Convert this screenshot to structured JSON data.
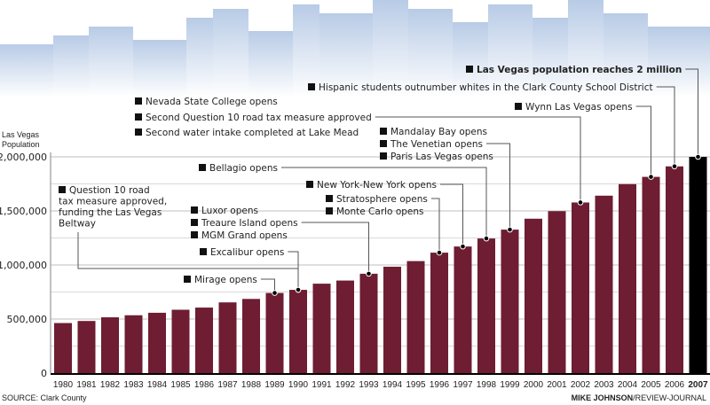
{
  "chart_data": {
    "type": "bar",
    "ylabel": "Las Vegas Population",
    "categories": [
      "1980",
      "1981",
      "1982",
      "1983",
      "1984",
      "1985",
      "1986",
      "1987",
      "1988",
      "1989",
      "1990",
      "1991",
      "1992",
      "1993",
      "1994",
      "1995",
      "1996",
      "1997",
      "1998",
      "1999",
      "2000",
      "2001",
      "2002",
      "2003",
      "2004",
      "2005",
      "2006",
      "2007"
    ],
    "values": [
      463000,
      482000,
      516000,
      535000,
      558000,
      586000,
      606000,
      654000,
      686000,
      741000,
      770000,
      827000,
      856000,
      919000,
      984000,
      1036000,
      1114000,
      1171000,
      1245000,
      1327000,
      1428000,
      1498000,
      1578000,
      1641000,
      1748000,
      1815000,
      1912000,
      2000000
    ],
    "ylim": [
      0,
      2000000
    ],
    "yticks": [
      0,
      500000,
      1000000,
      1500000,
      2000000
    ],
    "ytick_labels": [
      "0",
      "500,000",
      "1,000,000",
      "1,500,000",
      "2,000,000"
    ],
    "grid_step": 250000,
    "grid": true,
    "highlight_category": "2007",
    "colors": {
      "bar": "#6e1d32",
      "highlight": "#000000",
      "grid": "#cccccc",
      "skyline": "#b8cbe6"
    },
    "annotations": [
      {
        "lines": [
          "Las Vegas population reaches 2 million"
        ],
        "year": "2007",
        "bold": true
      },
      {
        "lines": [
          "Hispanic students outnumber whites in the Clark County School District"
        ],
        "year": "2006"
      },
      {
        "lines": [
          "Wynn Las Vegas opens"
        ],
        "year": "2005"
      },
      {
        "lines": [
          "Nevada State College opens"
        ],
        "year": "2002"
      },
      {
        "lines": [
          "Second Question 10 road tax measure approved"
        ],
        "year": "2002"
      },
      {
        "lines": [
          "Second water intake completed at Lake Mead"
        ],
        "year": "2002"
      },
      {
        "lines": [
          "Mandalay Bay opens"
        ],
        "year": "1999"
      },
      {
        "lines": [
          "The Venetian opens"
        ],
        "year": "1999"
      },
      {
        "lines": [
          "Paris Las Vegas opens"
        ],
        "year": "1999"
      },
      {
        "lines": [
          "Bellagio opens"
        ],
        "year": "1998"
      },
      {
        "lines": [
          "New York-New York opens"
        ],
        "year": "1997"
      },
      {
        "lines": [
          "Stratosphere opens"
        ],
        "year": "1996"
      },
      {
        "lines": [
          "Monte Carlo opens"
        ],
        "year": "1996"
      },
      {
        "lines": [
          "Question 10 road",
          "tax measure approved,",
          "funding the Las Vegas",
          "Beltway"
        ],
        "year": "1990"
      },
      {
        "lines": [
          "Luxor opens"
        ],
        "year": "1993"
      },
      {
        "lines": [
          "Treaure Island opens"
        ],
        "year": "1993"
      },
      {
        "lines": [
          "MGM Grand opens"
        ],
        "year": "1993"
      },
      {
        "lines": [
          "Excalibur opens"
        ],
        "year": "1990"
      },
      {
        "lines": [
          "Mirage opens"
        ],
        "year": "1989"
      }
    ]
  },
  "source": "SOURCE: Clark County",
  "credit_name": "MIKE JOHNSON",
  "credit_org": "/REVIEW-JOURNAL"
}
